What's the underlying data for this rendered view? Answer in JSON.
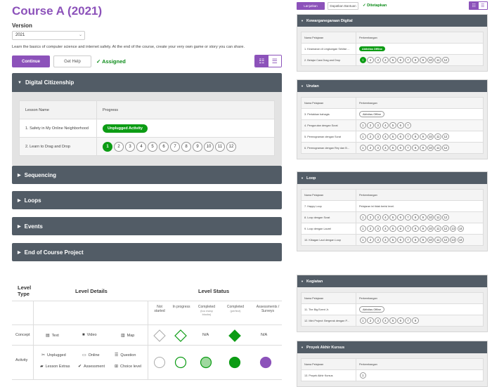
{
  "left": {
    "title": "Course A (2021)",
    "version_label": "Version",
    "version_value": "2021",
    "description": "Learn the basics of computer science and internet safety. At the end of the course, create your very own game or story you can share.",
    "continue_label": "Continue",
    "help_label": "Get Help",
    "assigned_label": "✓ Assigned",
    "units": [
      {
        "title": "Digital Citizenship",
        "expanded": true,
        "col_lesson": "Lesson Name",
        "col_progress": "Progress",
        "lessons": [
          {
            "name": "1. Safety in My Online Neighborhood",
            "type": "pill",
            "pill": "Unplugged Activity",
            "done": true
          },
          {
            "name": "2. Learn to Drag and Drop",
            "type": "bubbles",
            "bubbles": [
              "1",
              "2",
              "3",
              "4",
              "5",
              "6",
              "7",
              "8",
              "9",
              "10",
              "11",
              "12"
            ],
            "done_count": 1
          }
        ]
      },
      {
        "title": "Sequencing",
        "expanded": false
      },
      {
        "title": "Loops",
        "expanded": false
      },
      {
        "title": "Events",
        "expanded": false
      },
      {
        "title": "End of Course Project",
        "expanded": false
      }
    ],
    "legend": {
      "level_type": "Level Type",
      "level_details": "Level Details",
      "level_status": "Level Status",
      "status_cols": [
        {
          "label": "Not started",
          "sub": ""
        },
        {
          "label": "In progress",
          "sub": ""
        },
        {
          "label": "Completed",
          "sub": "(too many blocks)"
        },
        {
          "label": "Completed",
          "sub": "(perfect)"
        },
        {
          "label": "Assessments / Surveys",
          "sub": ""
        }
      ],
      "concept_label": "Concept",
      "activity_label": "Activity",
      "concept_items": [
        {
          "icon": "▤",
          "label": "Text"
        },
        {
          "icon": "■",
          "label": "Video"
        },
        {
          "icon": "▥",
          "label": "Map"
        }
      ],
      "activity_items": [
        {
          "icon": "✂",
          "label": "Unplugged"
        },
        {
          "icon": "▭",
          "label": "Online"
        },
        {
          "icon": "☰",
          "label": "Question"
        },
        {
          "icon": "▰",
          "label": "Lesson Extras"
        },
        {
          "icon": "✔",
          "label": "Assessment"
        },
        {
          "icon": "⊞",
          "label": "Choice level"
        }
      ],
      "na_1": "N/A",
      "na_2": "N/A"
    }
  },
  "right": {
    "continue_label": "Lanjutkan",
    "help_label": "Dapatkan Bantuan",
    "assigned_label": "✓ Ditetapkan",
    "col_lesson": "Nama Pelajaran",
    "col_progress": "Perkembangan",
    "units": [
      {
        "title": "Kewarganegaraan Digital",
        "lessons": [
          {
            "name": "1. Keamanan di Lingkungan Sekitar ...",
            "type": "pill",
            "pill": "Aktivitas Offline",
            "done": true
          },
          {
            "name": "2. Belajar Cara Drag and Drop",
            "type": "bubbles",
            "bubbles": [
              "1",
              "2",
              "3",
              "4",
              "5",
              "6",
              "7",
              "8",
              "9",
              "10",
              "11",
              "12"
            ],
            "done_count": 1
          }
        ]
      },
      {
        "title": "Urutan",
        "lessons": [
          {
            "name": "3. Perlakkan bahagia",
            "type": "pill",
            "pill": "Aktivitas Offline",
            "done": false
          },
          {
            "name": "4. Pengurutan dengan Scrat",
            "type": "bubbles",
            "bubbles": [
              "1",
              "2",
              "3",
              "4",
              "5",
              "6",
              "7"
            ],
            "done_count": 0
          },
          {
            "name": "5. Pemrograman dengan Scrat",
            "type": "bubbles",
            "bubbles": [
              "1",
              "2",
              "3",
              "4",
              "5",
              "6",
              "7",
              "8",
              "9",
              "10",
              "11",
              "12"
            ],
            "done_count": 0
          },
          {
            "name": "6. Pemrograman dengan Rey dan B...",
            "type": "bubbles",
            "bubbles": [
              "1",
              "2",
              "3",
              "4",
              "5",
              "6",
              "7",
              "8",
              "9",
              "10",
              "11",
              "12"
            ],
            "done_count": 0
          }
        ]
      },
      {
        "title": "Loop",
        "lessons": [
          {
            "name": "7. Happy Loop",
            "type": "text",
            "text": "Pelajaran ini tidak berisi level."
          },
          {
            "name": "8. Loop dengan Scrat",
            "type": "bubbles",
            "bubbles": [
              "1",
              "2",
              "3",
              "4",
              "5",
              "6",
              "7",
              "8",
              "9",
              "10",
              "11",
              "12"
            ],
            "done_count": 0
          },
          {
            "name": "9. Loop dengan Laurel",
            "type": "bubbles",
            "bubbles": [
              "1",
              "2",
              "3",
              "4",
              "5",
              "6",
              "7",
              "8",
              "9",
              "10",
              "11",
              "12",
              "13",
              "14"
            ],
            "done_count": 0
          },
          {
            "name": "10. Kibagan Laut dengan Loop",
            "type": "bubbles",
            "bubbles": [
              "1",
              "2",
              "3",
              "4",
              "5",
              "6",
              "7",
              "8",
              "9",
              "10",
              "11",
              "12",
              "13",
              "14"
            ],
            "done_count": 0
          }
        ]
      },
      {
        "title": "Kegiatan",
        "lessons": [
          {
            "name": "11. The Big Event Jr.",
            "type": "pill",
            "pill": "Aktivitas Offline",
            "done": false
          },
          {
            "name": "12. Mini Project: Bergerak dengan P...",
            "type": "bubbles",
            "bubbles": [
              "1",
              "2",
              "3",
              "4",
              "5",
              "6",
              "7",
              "8"
            ],
            "done_count": 0
          }
        ]
      },
      {
        "title": "Proyek Akhir Kursus",
        "lessons": [
          {
            "name": "13. Proyek Akhir Kursus",
            "type": "bubbles",
            "bubbles": [
              "1"
            ],
            "done_count": 0
          }
        ]
      }
    ]
  },
  "colors": {
    "purple": "#8c52ba",
    "green": "#0c9c14",
    "header": "#525c66"
  }
}
